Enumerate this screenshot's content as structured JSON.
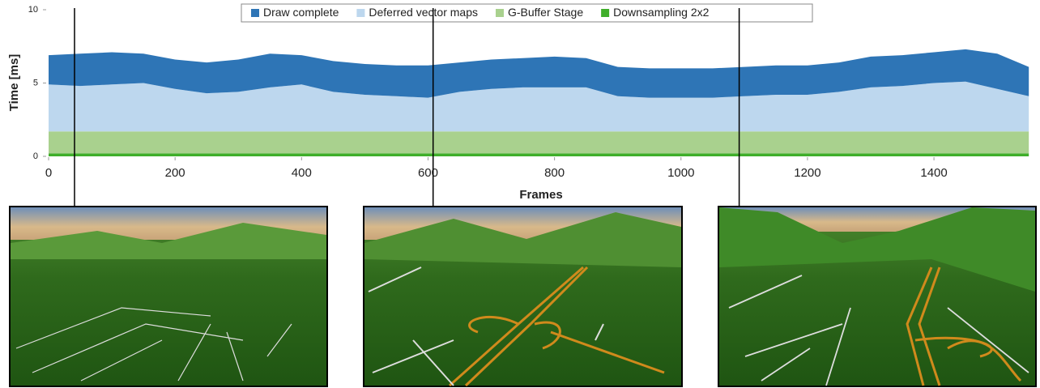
{
  "chart_data": {
    "type": "stacked_area",
    "y_label": "Time [ms]",
    "x_label": "Frames",
    "x": [
      0,
      50,
      100,
      150,
      200,
      250,
      300,
      350,
      400,
      450,
      500,
      550,
      600,
      650,
      700,
      750,
      800,
      850,
      900,
      950,
      1000,
      1050,
      1100,
      1150,
      1200,
      1250,
      1300,
      1350,
      1400,
      1450,
      1500,
      1550
    ],
    "series": [
      {
        "name": "Draw complete",
        "color": "#2e75b6",
        "values": [
          2.0,
          2.2,
          2.2,
          2.0,
          2.0,
          2.1,
          2.2,
          2.3,
          2.0,
          2.1,
          2.1,
          2.1,
          2.2,
          2.0,
          2.0,
          2.0,
          2.1,
          2.0,
          2.0,
          2.0,
          2.0,
          2.0,
          2.0,
          2.0,
          2.0,
          2.0,
          2.1,
          2.1,
          2.1,
          2.2,
          2.4,
          2.0
        ]
      },
      {
        "name": "Deferred vector maps",
        "color": "#bdd7ee",
        "values": [
          3.2,
          3.1,
          3.2,
          3.3,
          2.9,
          2.6,
          2.7,
          3.0,
          3.2,
          2.7,
          2.5,
          2.4,
          2.3,
          2.7,
          2.9,
          3.0,
          3.0,
          3.0,
          2.4,
          2.3,
          2.3,
          2.3,
          2.4,
          2.5,
          2.5,
          2.7,
          3.0,
          3.1,
          3.3,
          3.4,
          2.9,
          2.4
        ]
      },
      {
        "name": "G-Buffer Stage",
        "color": "#a9d18e",
        "values": [
          1.5,
          1.5,
          1.5,
          1.5,
          1.5,
          1.5,
          1.5,
          1.5,
          1.5,
          1.5,
          1.5,
          1.5,
          1.5,
          1.5,
          1.5,
          1.5,
          1.5,
          1.5,
          1.5,
          1.5,
          1.5,
          1.5,
          1.5,
          1.5,
          1.5,
          1.5,
          1.5,
          1.5,
          1.5,
          1.5,
          1.5,
          1.5
        ]
      },
      {
        "name": "Downsampling 2x2",
        "color": "#3fae2a",
        "values": [
          0.2,
          0.2,
          0.2,
          0.2,
          0.2,
          0.2,
          0.2,
          0.2,
          0.2,
          0.2,
          0.2,
          0.2,
          0.2,
          0.2,
          0.2,
          0.2,
          0.2,
          0.2,
          0.2,
          0.2,
          0.2,
          0.2,
          0.2,
          0.2,
          0.2,
          0.2,
          0.2,
          0.2,
          0.2,
          0.2,
          0.2,
          0.2
        ]
      }
    ],
    "xlim": [
      0,
      1560
    ],
    "xticks": [
      0,
      200,
      400,
      600,
      800,
      1000,
      1200,
      1400
    ],
    "ylim": [
      0,
      10
    ],
    "yticks": [
      0,
      5,
      10
    ],
    "highlight_frames": [
      41,
      608,
      1092
    ],
    "grid": false,
    "legend": "top"
  }
}
